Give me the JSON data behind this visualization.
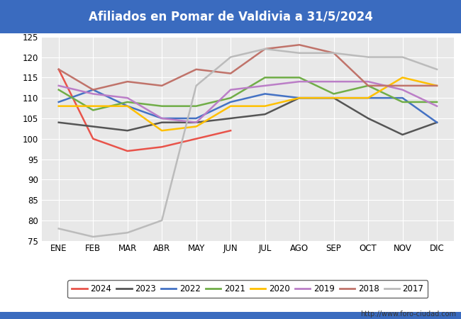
{
  "title": "Afiliados en Pomar de Valdivia a 31/5/2024",
  "title_bg_color": "#3a6bbf",
  "title_text_color": "#ffffff",
  "ylim": [
    75,
    125
  ],
  "yticks": [
    75,
    80,
    85,
    90,
    95,
    100,
    105,
    110,
    115,
    120,
    125
  ],
  "months": [
    "ENE",
    "FEB",
    "MAR",
    "ABR",
    "MAY",
    "JUN",
    "JUL",
    "AGO",
    "SEP",
    "OCT",
    "NOV",
    "DIC"
  ],
  "watermark": "http://www.foro-ciudad.com",
  "series": {
    "2024": {
      "color": "#e8534a",
      "linewidth": 1.8,
      "data": [
        117,
        100,
        97,
        98,
        100,
        102,
        null,
        null,
        null,
        null,
        null,
        null
      ]
    },
    "2023": {
      "color": "#555555",
      "linewidth": 1.8,
      "data": [
        104,
        103,
        102,
        104,
        104,
        105,
        106,
        110,
        110,
        105,
        101,
        104
      ]
    },
    "2022": {
      "color": "#4472c4",
      "linewidth": 1.8,
      "data": [
        109,
        112,
        108,
        105,
        105,
        109,
        111,
        110,
        110,
        110,
        110,
        104
      ]
    },
    "2021": {
      "color": "#70ad47",
      "linewidth": 1.8,
      "data": [
        112,
        107,
        109,
        108,
        108,
        110,
        115,
        115,
        111,
        113,
        109,
        109
      ]
    },
    "2020": {
      "color": "#ffc000",
      "linewidth": 1.8,
      "data": [
        108,
        108,
        108,
        102,
        103,
        108,
        108,
        110,
        110,
        110,
        115,
        113
      ]
    },
    "2019": {
      "color": "#bb7ec7",
      "linewidth": 1.8,
      "data": [
        113,
        111,
        110,
        105,
        104,
        112,
        113,
        114,
        114,
        114,
        112,
        108
      ]
    },
    "2018": {
      "color": "#c0736a",
      "linewidth": 1.8,
      "data": [
        117,
        112,
        114,
        113,
        117,
        116,
        122,
        123,
        121,
        113,
        113,
        113
      ]
    },
    "2017": {
      "color": "#bbbbbb",
      "linewidth": 1.8,
      "data": [
        78,
        76,
        77,
        80,
        113,
        120,
        122,
        121,
        121,
        120,
        120,
        117
      ]
    }
  },
  "legend_order": [
    "2024",
    "2023",
    "2022",
    "2021",
    "2020",
    "2019",
    "2018",
    "2017"
  ],
  "footer_color": "#3a6bbf",
  "fig_bg_color": "#ffffff",
  "plot_bg_color": "#e8e8e8"
}
